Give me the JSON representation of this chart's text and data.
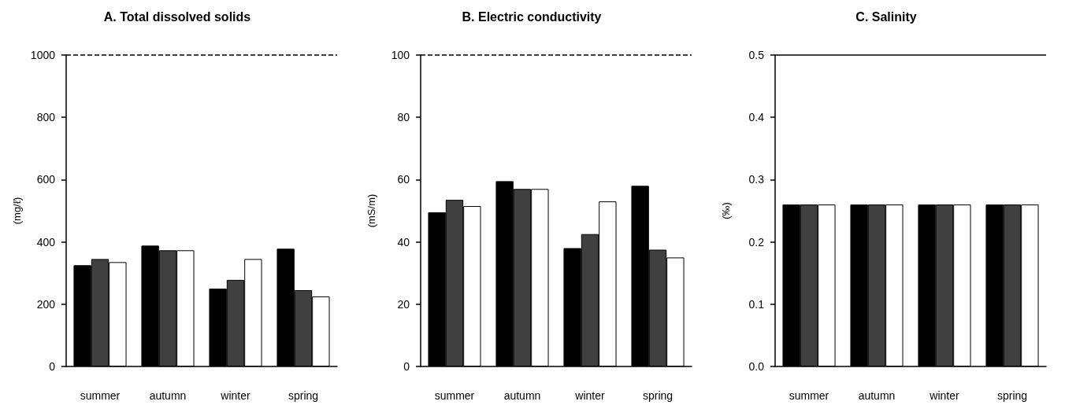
{
  "chart_data": [
    {
      "type": "bar",
      "title": "A. Total dissolved solids",
      "ylabel": "(mg/ℓ)",
      "categories": [
        "summer",
        "autumn",
        "winter",
        "spring"
      ],
      "series": [
        {
          "color": "#000000",
          "values": [
            325,
            388,
            250,
            378
          ]
        },
        {
          "color": "#404040",
          "values": [
            345,
            373,
            278,
            245
          ]
        },
        {
          "color": "#ffffff",
          "values": [
            335,
            373,
            345,
            225
          ]
        }
      ],
      "ylim": [
        0,
        1000
      ],
      "yticks": [
        0,
        200,
        400,
        600,
        800,
        1000
      ],
      "ref_lines": [
        {
          "axis": "y",
          "value": 1000,
          "line_style": "dashed",
          "color": "#000000"
        }
      ]
    },
    {
      "type": "bar",
      "title": "B. Electric conductivity",
      "ylabel": "(mS/m)",
      "categories": [
        "summer",
        "autumn",
        "winter",
        "spring"
      ],
      "series": [
        {
          "color": "#000000",
          "values": [
            49.5,
            59.5,
            38,
            58
          ]
        },
        {
          "color": "#404040",
          "values": [
            53.5,
            57,
            42.5,
            37.5
          ]
        },
        {
          "color": "#ffffff",
          "values": [
            51.5,
            57,
            53,
            35
          ]
        }
      ],
      "ylim": [
        0,
        100
      ],
      "yticks": [
        0,
        20,
        40,
        60,
        80,
        100
      ],
      "ref_lines": [
        {
          "axis": "y",
          "value": 100,
          "line_style": "dashed",
          "color": "#000000"
        }
      ]
    },
    {
      "type": "bar",
      "title": "C. Salinity",
      "ylabel": "(‰)",
      "categories": [
        "summer",
        "autumn",
        "winter",
        "spring"
      ],
      "series": [
        {
          "color": "#000000",
          "values": [
            0.26,
            0.26,
            0.26,
            0.26
          ]
        },
        {
          "color": "#404040",
          "values": [
            0.26,
            0.26,
            0.26,
            0.26
          ]
        },
        {
          "color": "#ffffff",
          "values": [
            0.26,
            0.26,
            0.26,
            0.26
          ]
        }
      ],
      "ylim": [
        0,
        0.5
      ],
      "yticks": [
        {
          "value": 0,
          "label": "0.0"
        },
        0.1,
        0.2,
        0.3,
        0.4,
        0.5
      ],
      "ref_lines": [
        {
          "axis": "y",
          "value": 0.5,
          "line_style": "solid",
          "color": "#000000"
        }
      ]
    }
  ]
}
